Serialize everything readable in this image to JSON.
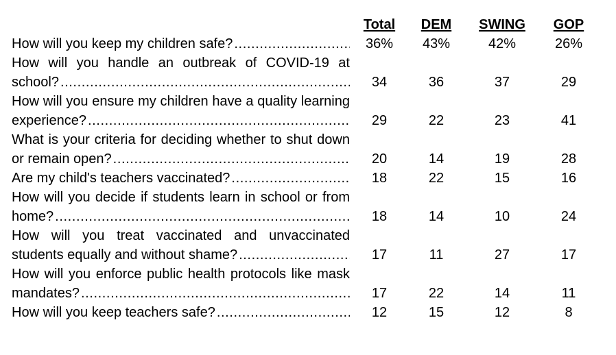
{
  "table": {
    "columns": [
      "Total",
      "DEM",
      "SWING",
      "GOP"
    ],
    "rows": [
      {
        "question": "How will you keep my children safe?",
        "lines": [
          "How will you keep my children safe?"
        ],
        "values": [
          "36%",
          "43%",
          "42%",
          "26%"
        ]
      },
      {
        "question": "How will you handle an outbreak of COVID-19 at school?",
        "lines": [
          "How will you handle an outbreak of COVID-19 at",
          "school?"
        ],
        "values": [
          "34",
          "36",
          "37",
          "29"
        ]
      },
      {
        "question": "How will you ensure my children have a quality learning experience?",
        "lines": [
          "How will you ensure my children have a quality learning",
          "experience?"
        ],
        "values": [
          "29",
          "22",
          "23",
          "41"
        ]
      },
      {
        "question": "What is your criteria for deciding whether to shut down or remain open?",
        "lines": [
          "What is your criteria for deciding whether to shut down",
          "or remain open?"
        ],
        "values": [
          "20",
          "14",
          "19",
          "28"
        ]
      },
      {
        "question": "Are my child's teachers vaccinated?",
        "lines": [
          "Are my child's teachers vaccinated?"
        ],
        "values": [
          "18",
          "22",
          "15",
          "16"
        ]
      },
      {
        "question": "How will you decide if students learn in school or from home?",
        "lines": [
          "How will you decide if students learn in school or from",
          "home?"
        ],
        "values": [
          "18",
          "14",
          "10",
          "24"
        ]
      },
      {
        "question": "How will you treat vaccinated and unvaccinated students equally and without shame?",
        "lines": [
          "How will you treat vaccinated and unvaccinated",
          "students equally and without shame?"
        ],
        "values": [
          "17",
          "11",
          "27",
          "17"
        ]
      },
      {
        "question": "How will you enforce public health protocols like mask mandates?",
        "lines": [
          "How will you enforce public health protocols like mask",
          "mandates?"
        ],
        "values": [
          "17",
          "22",
          "14",
          "11"
        ]
      },
      {
        "question": "How will you keep teachers safe?",
        "lines": [
          "How will you keep teachers safe?"
        ],
        "values": [
          "12",
          "15",
          "12",
          "8"
        ]
      }
    ],
    "text_color": "#000000",
    "background_color": "#ffffff"
  }
}
